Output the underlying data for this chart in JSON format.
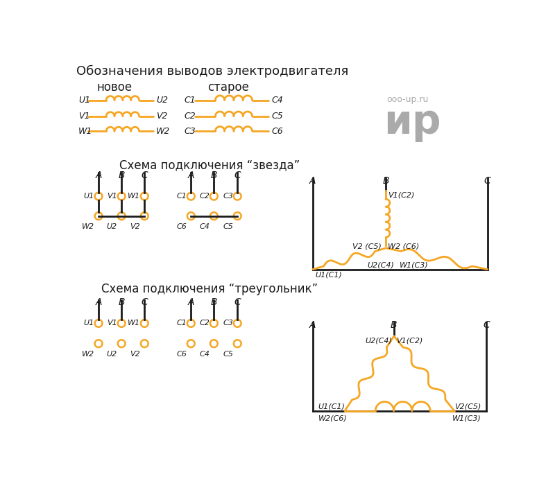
{
  "title_main": "Обозначения выводов электродвигателя",
  "col_new": "новое",
  "col_old": "старое",
  "star_title": "Схема подключения “звезда”",
  "triangle_title": "Схема подключения “треугольник”",
  "orange": "#F5A623",
  "black": "#1a1a1a",
  "gray": "#aaaaaa",
  "bg": "#FFFFFF",
  "watermark1": "ooo-up.ru",
  "watermark2": "ир"
}
